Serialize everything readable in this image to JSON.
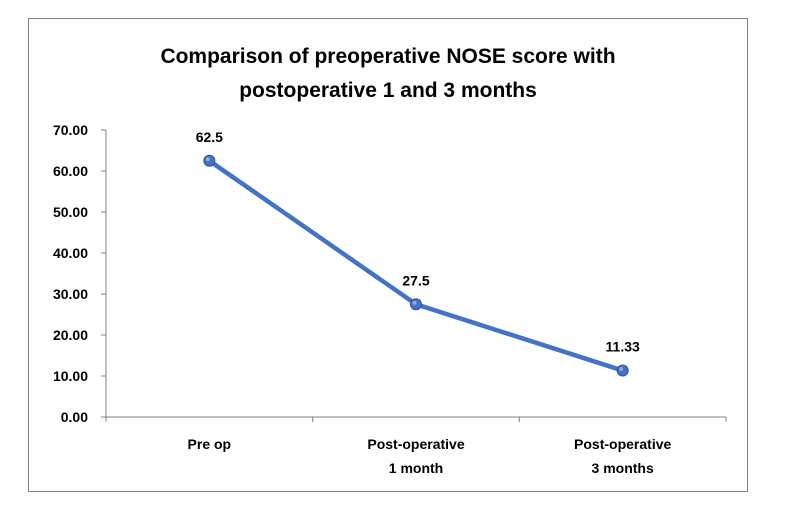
{
  "chart_data": {
    "type": "line",
    "title": "Comparison of preoperative NOSE score with postoperative 1 and 3 months",
    "title_lines": [
      "Comparison of preoperative NOSE score with",
      "postoperative 1 and 3 months"
    ],
    "categories": [
      "Pre op",
      "Post-operative 1 month",
      "Post-operative 3 months"
    ],
    "category_lines": [
      [
        "Pre op"
      ],
      [
        "Post-operative",
        "1 month"
      ],
      [
        "Post-operative",
        "3 months"
      ]
    ],
    "series": [
      {
        "values": [
          62.5,
          27.5,
          11.33
        ],
        "data_labels": [
          "62.5",
          "27.5",
          "11.33"
        ],
        "color": "#4472c4"
      }
    ],
    "yticks": [
      "0.00",
      "10.00",
      "20.00",
      "30.00",
      "40.00",
      "50.00",
      "60.00",
      "70.00"
    ],
    "ylim": [
      0,
      70
    ],
    "xlabel": "",
    "ylabel": "",
    "grid": false,
    "legend": "none",
    "marker_color": "#4472c4",
    "axis_color": "#808080"
  }
}
